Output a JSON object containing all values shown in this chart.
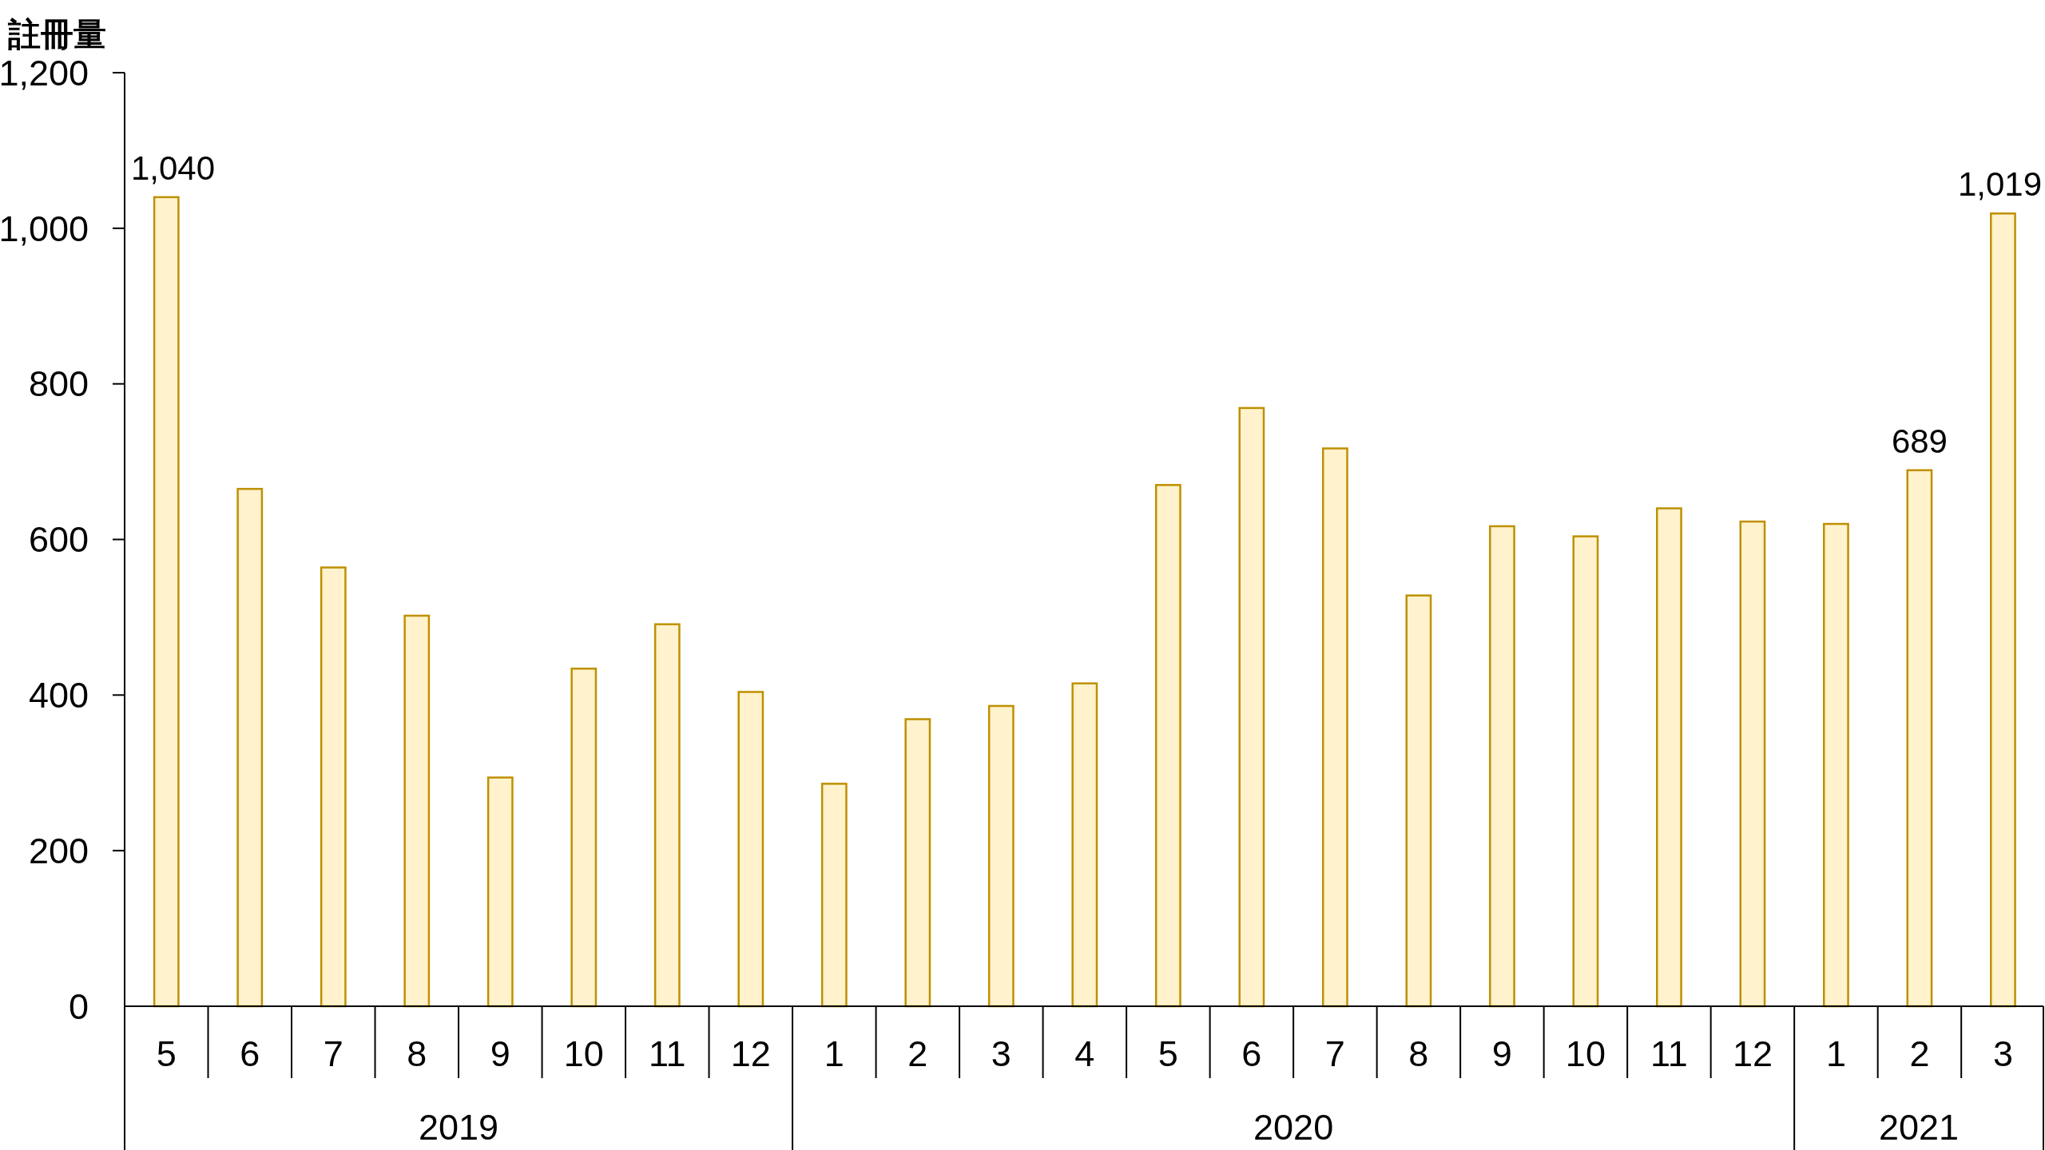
{
  "chart_data": {
    "type": "bar",
    "ylabel": "註冊量",
    "x": [
      "2019-05",
      "2019-06",
      "2019-07",
      "2019-08",
      "2019-09",
      "2019-10",
      "2019-11",
      "2019-12",
      "2020-01",
      "2020-02",
      "2020-03",
      "2020-04",
      "2020-05",
      "2020-06",
      "2020-07",
      "2020-08",
      "2020-09",
      "2020-10",
      "2020-11",
      "2020-12",
      "2021-01",
      "2021-02",
      "2021-03"
    ],
    "values": [
      1040,
      665,
      564,
      502,
      294,
      434,
      491,
      404,
      286,
      369,
      386,
      415,
      670,
      769,
      717,
      528,
      617,
      604,
      640,
      623,
      620,
      689,
      1019
    ],
    "value_labels": [
      "1,040",
      null,
      null,
      null,
      null,
      null,
      null,
      null,
      null,
      null,
      null,
      null,
      null,
      null,
      null,
      null,
      null,
      null,
      null,
      null,
      null,
      "689",
      "1,019"
    ],
    "color": "#fff2cc",
    "xlim": [
      "2019-04-16",
      "2021-03-16"
    ],
    "xticks": [
      {
        "value": "2019-05",
        "label": "5"
      },
      {
        "value": "2019-06",
        "label": "6"
      },
      {
        "value": "2019-07",
        "label": "7"
      },
      {
        "value": "2019-08",
        "label": "8"
      },
      {
        "value": "2019-09",
        "label": "9"
      },
      {
        "value": "2019-10",
        "label": "10"
      },
      {
        "value": "2019-11",
        "label": "11"
      },
      {
        "value": "2019-12",
        "label": "12"
      },
      {
        "value": "2020-01",
        "label": "1"
      },
      {
        "value": "2020-02",
        "label": "2"
      },
      {
        "value": "2020-03",
        "label": "3"
      },
      {
        "value": "2020-04",
        "label": "4"
      },
      {
        "value": "2020-05",
        "label": "5"
      },
      {
        "value": "2020-06",
        "label": "6"
      },
      {
        "value": "2020-07",
        "label": "7"
      },
      {
        "value": "2020-08",
        "label": "8"
      },
      {
        "value": "2020-09",
        "label": "9"
      },
      {
        "value": "2020-10",
        "label": "10"
      },
      {
        "value": "2020-11",
        "label": "11"
      },
      {
        "value": "2020-12",
        "label": "12"
      },
      {
        "value": "2021-01",
        "label": "1"
      },
      {
        "value": "2021-02",
        "label": "2"
      },
      {
        "value": "2021-03",
        "label": "3"
      }
    ],
    "annotations": [
      "2019",
      "2020",
      "2021"
    ],
    "ylim": [
      0,
      1200
    ],
    "yticks": [
      0,
      200,
      400,
      600,
      800,
      {
        "value": 1000,
        "label": "1,000"
      },
      {
        "value": 1200,
        "label": "1,200"
      }
    ]
  }
}
